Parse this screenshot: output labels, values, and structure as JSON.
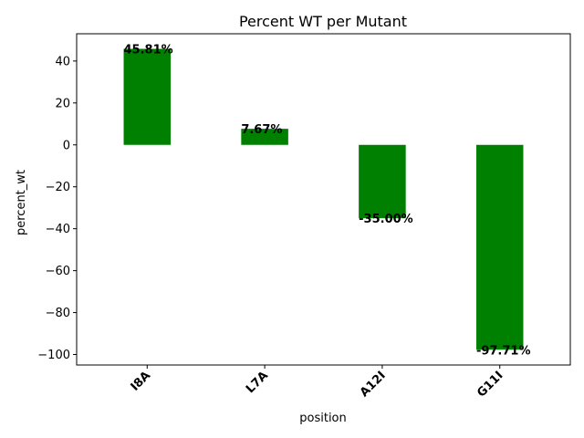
{
  "chart_data": {
    "type": "bar",
    "title": "Percent WT per Mutant",
    "xlabel": "position",
    "ylabel": "percent_wt",
    "categories": [
      "I8A",
      "L7A",
      "A12I",
      "G11I"
    ],
    "values": [
      45.81,
      7.67,
      -35.0,
      -97.71
    ],
    "data_labels": [
      "45.81%",
      "7.67%",
      "-35.00%",
      "-97.71%"
    ],
    "ylim": [
      -105,
      53
    ],
    "yticks": [
      40,
      20,
      0,
      -20,
      -40,
      -60,
      -80,
      -100
    ],
    "ytick_labels": [
      "40",
      "20",
      "0",
      "−20",
      "−40",
      "−60",
      "−80",
      "−100"
    ],
    "bar_color": "#008000",
    "grid": false,
    "legend": "none"
  }
}
